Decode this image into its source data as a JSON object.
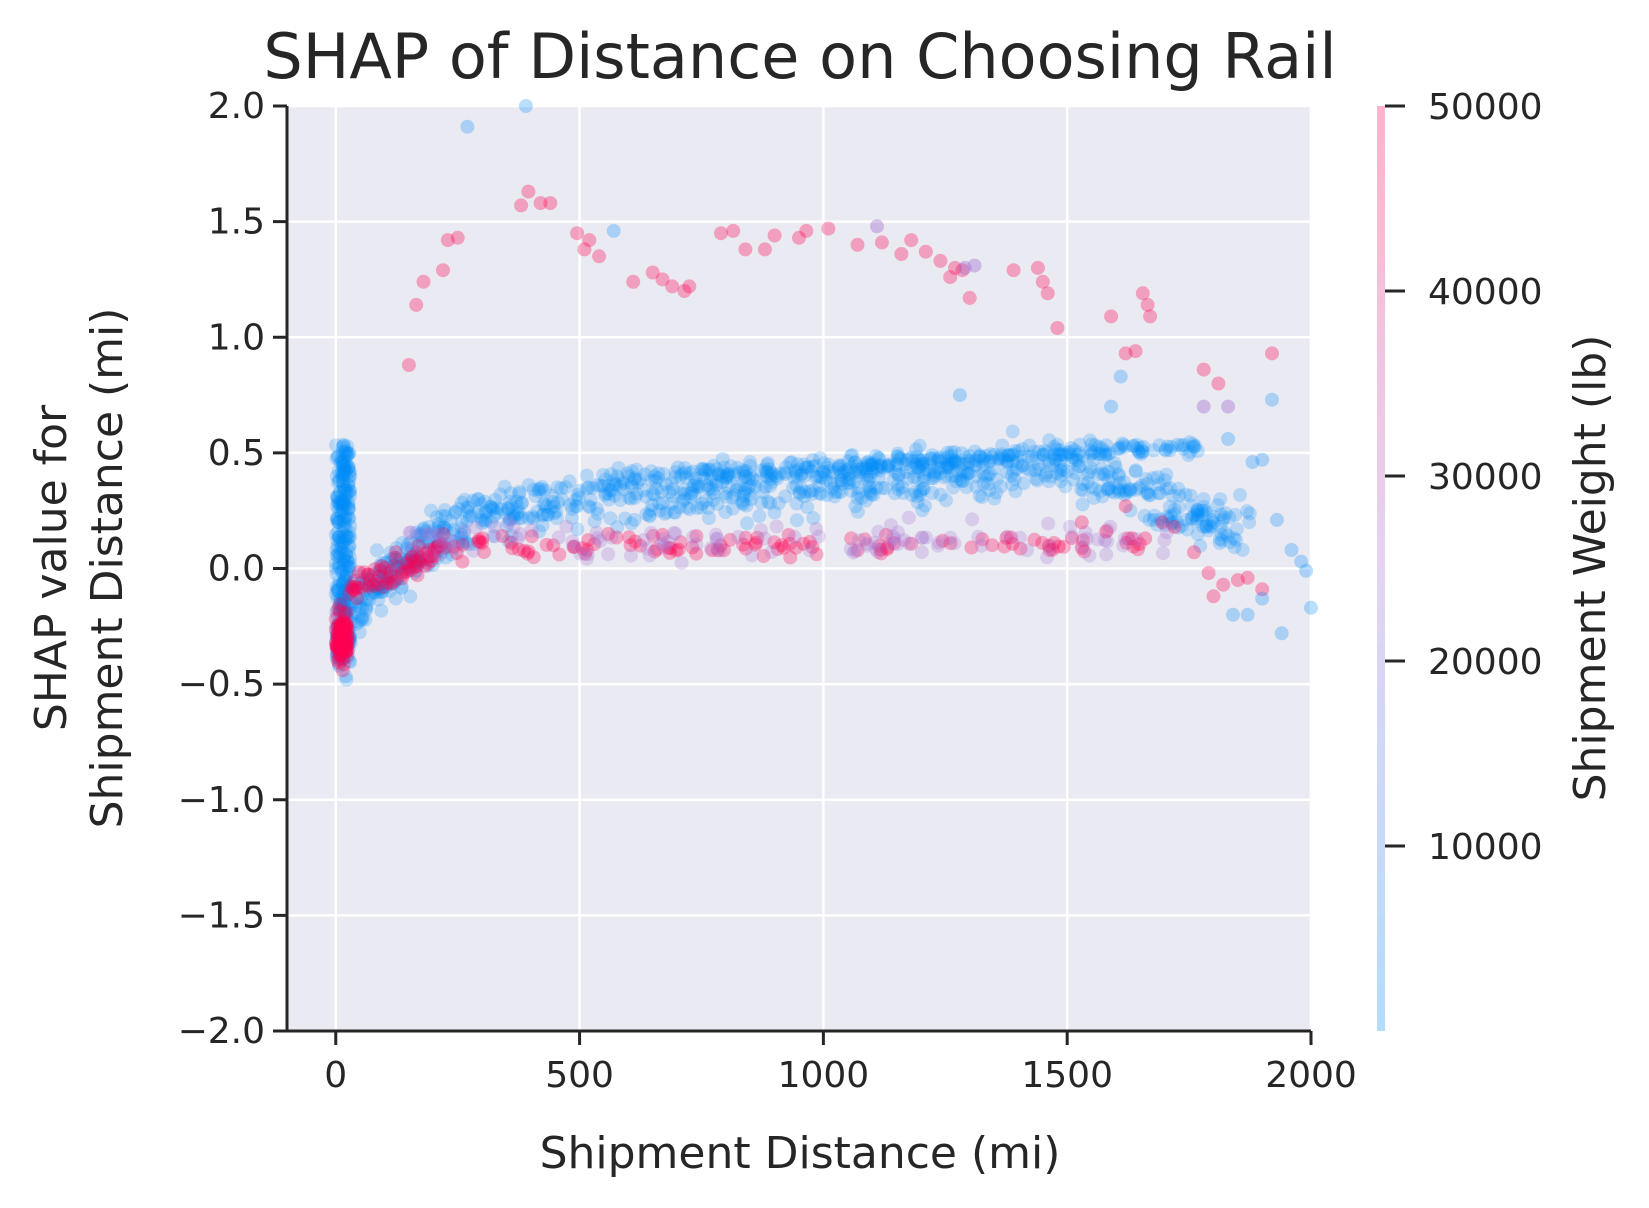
{
  "chart_data": {
    "type": "scatter",
    "title": "SHAP of Distance on Choosing Rail",
    "xlabel": "Shipment Distance (mi)",
    "ylabel_lines": [
      "SHAP value for",
      "Shipment Distance (mi)"
    ],
    "xlim": [
      -100,
      2000
    ],
    "ylim": [
      -2.0,
      2.0
    ],
    "xticks": [
      {
        "value": 0,
        "label": "0"
      },
      {
        "value": 500,
        "label": "500"
      },
      {
        "value": 1000,
        "label": "1000"
      },
      {
        "value": 1500,
        "label": "1500"
      },
      {
        "value": 2000,
        "label": "2000"
      }
    ],
    "yticks": [
      {
        "value": 2.0,
        "label": "2.0"
      },
      {
        "value": 1.5,
        "label": "1.5"
      },
      {
        "value": 1.0,
        "label": "1.0"
      },
      {
        "value": 0.5,
        "label": "0.5"
      },
      {
        "value": 0.0,
        "label": "0.0"
      },
      {
        "value": -0.5,
        "label": "−0.5"
      },
      {
        "value": -1.0,
        "label": "−1.0"
      },
      {
        "value": -1.5,
        "label": "−1.5"
      },
      {
        "value": -2.0,
        "label": "−2.0"
      }
    ],
    "grid": true,
    "background_color": "#eaeaf2",
    "colorbar": {
      "label": "Shipment Weight (lb)",
      "range": [
        0,
        50000
      ],
      "ticks": [
        {
          "value": 50000,
          "label": "50000"
        },
        {
          "value": 40000,
          "label": "40000"
        },
        {
          "value": 30000,
          "label": "30000"
        },
        {
          "value": 20000,
          "label": "20000"
        },
        {
          "value": 10000,
          "label": "10000"
        }
      ],
      "color_low": "#008bfb",
      "color_mid": "#a36fd0",
      "color_high": "#ff0052"
    },
    "points_high_weight": [
      [
        150,
        0.88
      ],
      [
        165,
        1.14
      ],
      [
        180,
        1.24
      ],
      [
        220,
        1.29
      ],
      [
        230,
        1.42
      ],
      [
        250,
        1.43
      ],
      [
        380,
        1.57
      ],
      [
        395,
        1.63
      ],
      [
        420,
        1.58
      ],
      [
        440,
        1.58
      ],
      [
        495,
        1.45
      ],
      [
        510,
        1.38
      ],
      [
        520,
        1.42
      ],
      [
        540,
        1.35
      ],
      [
        610,
        1.24
      ],
      [
        650,
        1.28
      ],
      [
        670,
        1.25
      ],
      [
        690,
        1.22
      ],
      [
        715,
        1.2
      ],
      [
        725,
        1.22
      ],
      [
        790,
        1.45
      ],
      [
        815,
        1.46
      ],
      [
        840,
        1.38
      ],
      [
        880,
        1.38
      ],
      [
        900,
        1.44
      ],
      [
        950,
        1.43
      ],
      [
        965,
        1.46
      ],
      [
        1010,
        1.47
      ],
      [
        1070,
        1.4
      ],
      [
        1120,
        1.41
      ],
      [
        1160,
        1.36
      ],
      [
        1180,
        1.42
      ],
      [
        1210,
        1.37
      ],
      [
        1240,
        1.33
      ],
      [
        1260,
        1.26
      ],
      [
        1270,
        1.3
      ],
      [
        1285,
        1.29
      ],
      [
        1300,
        1.17
      ],
      [
        1390,
        1.29
      ],
      [
        1440,
        1.3
      ],
      [
        1450,
        1.24
      ],
      [
        1460,
        1.19
      ],
      [
        1480,
        1.04
      ],
      [
        1590,
        1.09
      ],
      [
        1620,
        0.93
      ],
      [
        1640,
        0.94
      ],
      [
        1655,
        1.19
      ],
      [
        1665,
        1.14
      ],
      [
        1670,
        1.09
      ],
      [
        1780,
        0.86
      ],
      [
        1810,
        0.8
      ],
      [
        1920,
        0.93
      ],
      [
        1870,
        -0.04
      ],
      [
        1900,
        -0.09
      ],
      [
        1850,
        -0.05
      ],
      [
        1820,
        -0.07
      ],
      [
        1790,
        -0.02
      ],
      [
        1800,
        -0.12
      ],
      [
        1760,
        0.07
      ],
      [
        1720,
        0.18
      ],
      [
        1695,
        0.2
      ],
      [
        1660,
        0.13
      ],
      [
        1620,
        0.27
      ],
      [
        1580,
        0.16
      ],
      [
        1530,
        0.2
      ]
    ],
    "points_mid_weight": [
      [
        1110,
        1.48
      ],
      [
        1290,
        1.3
      ],
      [
        1310,
        1.31
      ],
      [
        1830,
        0.7
      ],
      [
        1780,
        0.7
      ]
    ],
    "points_low_weight": [
      [
        270,
        1.91
      ],
      [
        390,
        2.0
      ],
      [
        570,
        1.46
      ],
      [
        1280,
        0.75
      ],
      [
        1590,
        0.7
      ],
      [
        1610,
        0.83
      ],
      [
        1920,
        0.73
      ],
      [
        1830,
        0.56
      ],
      [
        1880,
        0.46
      ],
      [
        1900,
        0.47
      ],
      [
        1930,
        0.21
      ],
      [
        1940,
        -0.28
      ],
      [
        1870,
        -0.2
      ],
      [
        1840,
        -0.2
      ],
      [
        1900,
        -0.13
      ],
      [
        1960,
        0.08
      ],
      [
        1980,
        0.03
      ],
      [
        2000,
        -0.17
      ],
      [
        1990,
        -0.01
      ]
    ]
  }
}
